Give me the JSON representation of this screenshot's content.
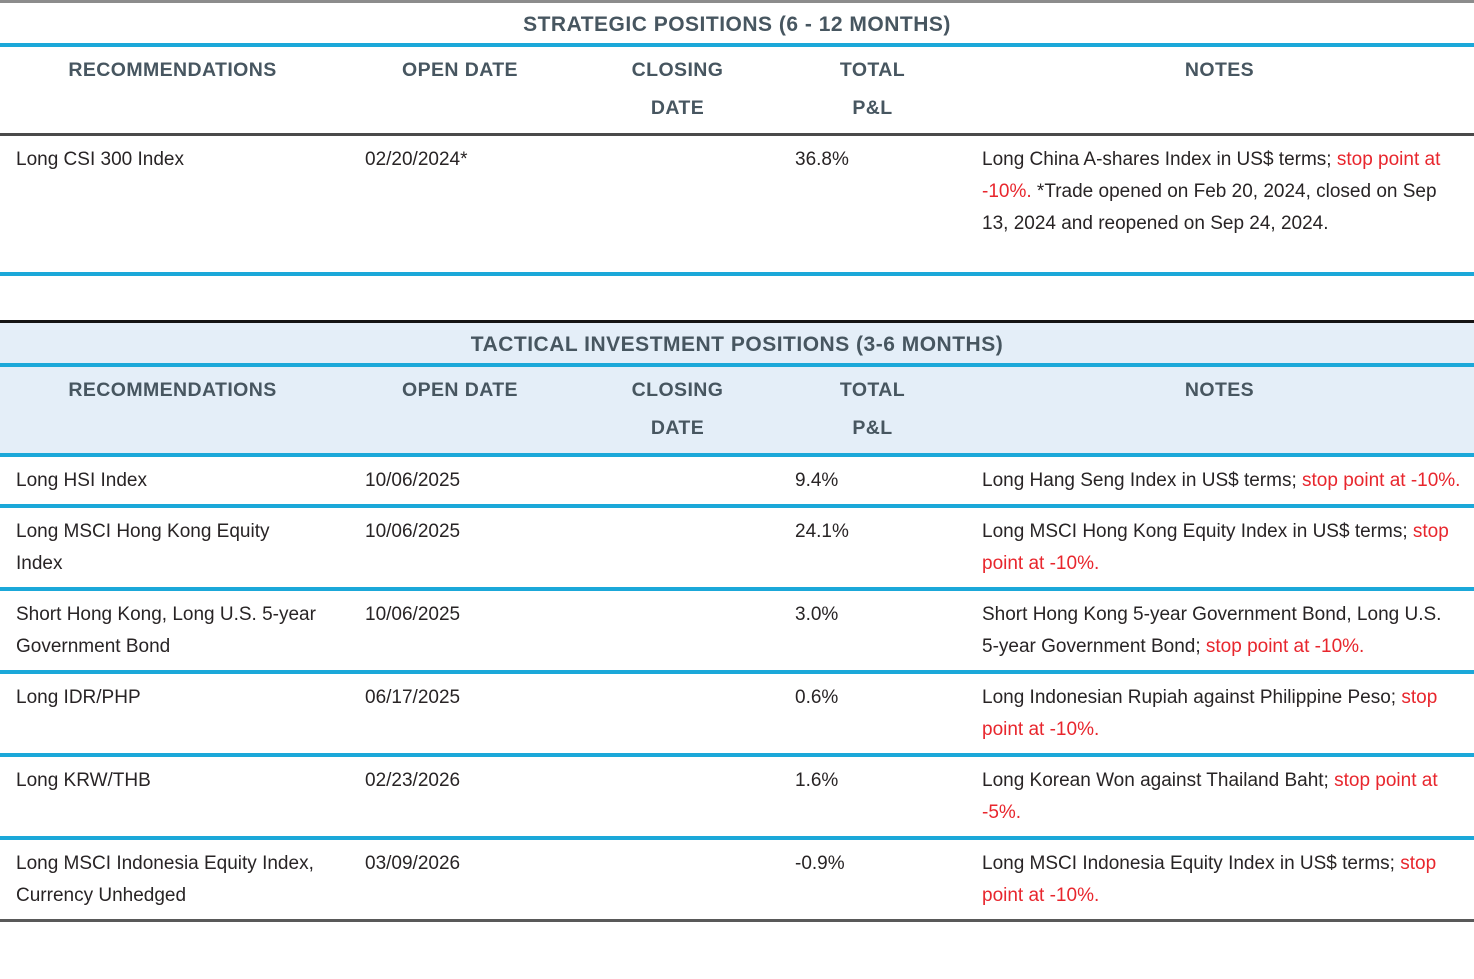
{
  "colors": {
    "accent_blue": "#1ba8d9",
    "alert_red": "#e8262d",
    "header_text": "#475660",
    "body_text": "#282425",
    "tactical_header_bg": "#e4eef8"
  },
  "tables": [
    {
      "id": "strategic",
      "title": "STRATEGIC POSITIONS (6 - 12 MONTHS)",
      "columns": [
        {
          "label": "RECOMMENDATIONS",
          "lines": [
            "RECOMMENDATIONS"
          ]
        },
        {
          "label": "OPEN DATE",
          "lines": [
            "OPEN DATE"
          ]
        },
        {
          "label": "CLOSING DATE",
          "lines": [
            "CLOSING",
            "DATE"
          ]
        },
        {
          "label": "TOTAL P&L",
          "lines": [
            "TOTAL",
            "P&L"
          ]
        },
        {
          "label": "NOTES",
          "lines": [
            "NOTES"
          ]
        }
      ],
      "rows": [
        {
          "recommendation": "Long CSI 300 Index",
          "open_date": "02/20/2024*",
          "closing_date": "",
          "total_pnl": "36.8%",
          "notes": [
            {
              "text": "Long China A-shares Index in US$ terms; ",
              "red": false
            },
            {
              "text": "stop point at -10%.",
              "red": true
            },
            {
              "text": " *Trade opened on Feb 20, 2024, closed on Sep 13, 2024 and reopened on Sep 24, 2024.",
              "red": false
            }
          ]
        }
      ]
    },
    {
      "id": "tactical",
      "title": "TACTICAL INVESTMENT POSITIONS (3-6 MONTHS)",
      "columns": [
        {
          "label": "RECOMMENDATIONS",
          "lines": [
            "RECOMMENDATIONS"
          ]
        },
        {
          "label": "OPEN DATE",
          "lines": [
            "OPEN DATE"
          ]
        },
        {
          "label": "CLOSING DATE",
          "lines": [
            "CLOSING",
            "DATE"
          ]
        },
        {
          "label": "TOTAL P&L",
          "lines": [
            "TOTAL",
            "P&L"
          ]
        },
        {
          "label": "NOTES",
          "lines": [
            "NOTES"
          ]
        }
      ],
      "rows": [
        {
          "recommendation": "Long HSI Index",
          "open_date": "10/06/2025",
          "closing_date": "",
          "total_pnl": "9.4%",
          "notes": [
            {
              "text": "Long Hang Seng Index in US$ terms; ",
              "red": false
            },
            {
              "text": "stop point at -10%.",
              "red": true
            }
          ]
        },
        {
          "recommendation": "Long MSCI Hong Kong Equity Index",
          "open_date": "10/06/2025",
          "closing_date": "",
          "total_pnl": "24.1%",
          "notes": [
            {
              "text": "Long MSCI Hong Kong Equity Index in US$ terms; ",
              "red": false
            },
            {
              "text": "stop point at -10%.",
              "red": true
            }
          ]
        },
        {
          "recommendation": "Short Hong Kong, Long U.S. 5-year Government Bond",
          "open_date": "10/06/2025",
          "closing_date": "",
          "total_pnl": "3.0%",
          "notes": [
            {
              "text": "Short Hong Kong 5-year Government Bond, Long U.S. 5-year Government Bond; ",
              "red": false
            },
            {
              "text": "stop point at -10%.",
              "red": true
            }
          ]
        },
        {
          "recommendation": "Long IDR/PHP",
          "open_date": "06/17/2025",
          "closing_date": "",
          "total_pnl": "0.6%",
          "notes": [
            {
              "text": "Long Indonesian Rupiah against Philippine Peso; ",
              "red": false
            },
            {
              "text": "stop point at -10%.",
              "red": true
            }
          ]
        },
        {
          "recommendation": "Long KRW/THB",
          "open_date": "02/23/2026",
          "closing_date": "",
          "total_pnl": "1.6%",
          "notes": [
            {
              "text": "Long Korean Won against Thailand Baht; ",
              "red": false
            },
            {
              "text": "stop point at -5%.",
              "red": true
            }
          ]
        },
        {
          "recommendation": "Long MSCI Indonesia Equity Index, Currency Unhedged",
          "open_date": "03/09/2026",
          "closing_date": "",
          "total_pnl": "-0.9%",
          "notes": [
            {
              "text": "Long MSCI Indonesia Equity Index in US$ terms; ",
              "red": false
            },
            {
              "text": "stop point at -10%.",
              "red": true
            }
          ]
        }
      ]
    }
  ]
}
